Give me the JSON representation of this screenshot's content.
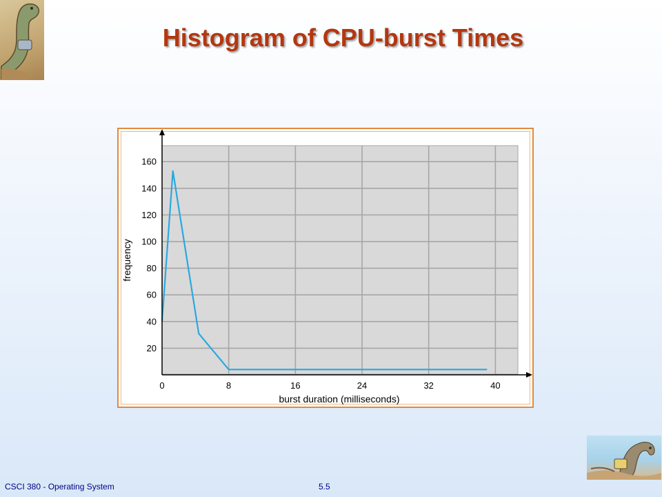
{
  "slide": {
    "title": "Histogram of CPU-burst Times",
    "footer_course": "CSCI 380 - Operating System",
    "page_number": "5.5"
  },
  "colors": {
    "title": "#b4370f",
    "plot_background": "#d9d9d9",
    "grid": "#a6a6a6",
    "line": "#29a8e0",
    "frame": "#e08a3c",
    "footer_text": "#000080"
  },
  "chart_data": {
    "type": "line",
    "title": "",
    "xlabel": "burst duration (milliseconds)",
    "ylabel": "frequency",
    "xlim": [
      0,
      42.7
    ],
    "ylim": [
      0,
      172
    ],
    "xticks": [
      0,
      8,
      16,
      24,
      32,
      40
    ],
    "yticks": [
      20,
      40,
      60,
      80,
      100,
      120,
      140,
      160
    ],
    "grid": true,
    "legend": "none",
    "x": [
      0,
      1.3,
      4.4,
      8,
      39
    ],
    "y": [
      40,
      153,
      31,
      4,
      4
    ]
  }
}
